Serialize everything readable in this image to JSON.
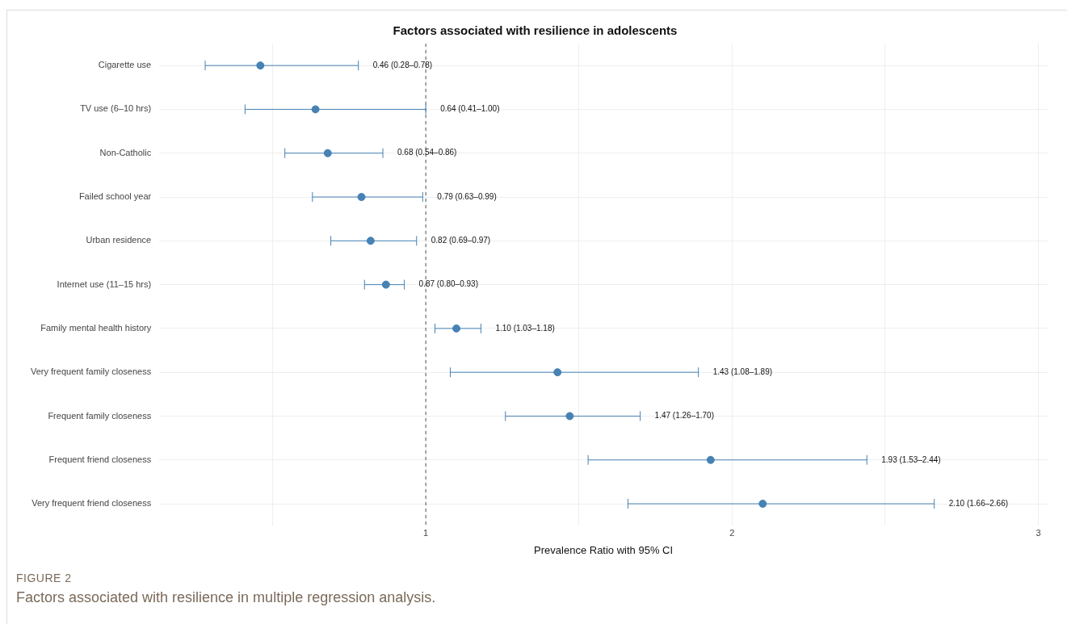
{
  "chart_data": {
    "type": "scatter",
    "orientation": "horizontal",
    "title": "Factors associated with resilience in adolescents",
    "xlabel": "Prevalence Ratio with 95% CI",
    "categories": [
      "Cigarette use",
      "TV use (6–10 hrs)",
      "Non-Catholic",
      "Failed school year",
      "Urban residence",
      "Internet use (11–15 hrs)",
      "Family mental health history",
      "Very frequent family closeness",
      "Frequent family closeness",
      "Frequent friend closeness",
      "Very frequent friend closeness"
    ],
    "values": [
      0.46,
      0.64,
      0.68,
      0.79,
      0.82,
      0.87,
      1.1,
      1.43,
      1.47,
      1.93,
      2.1
    ],
    "errors": [
      [
        0.28,
        0.78
      ],
      [
        0.41,
        1.0
      ],
      [
        0.54,
        0.86
      ],
      [
        0.63,
        0.99
      ],
      [
        0.69,
        0.97
      ],
      [
        0.8,
        0.93
      ],
      [
        1.03,
        1.18
      ],
      [
        1.08,
        1.89
      ],
      [
        1.26,
        1.7
      ],
      [
        1.53,
        2.44
      ],
      [
        1.66,
        2.66
      ]
    ],
    "color": "#4682b4",
    "marker": "circle",
    "grid": true,
    "xlim": [
      0.13,
      3.03
    ],
    "xticks": [
      {
        "value": 0.5,
        "label": null
      },
      1,
      {
        "value": 1.5,
        "label": null
      },
      2,
      {
        "value": 2.5,
        "label": null
      },
      3
    ],
    "ref_lines": [
      {
        "axis": "x",
        "value": 1,
        "line_style": "dashed",
        "color": "#555555"
      }
    ],
    "annotations": [
      {
        "text": "0.46 (0.28–0.78)",
        "x": 0.78,
        "y": "Cigarette use"
      },
      {
        "text": "0.64 (0.41–1.00)",
        "x": 1.0,
        "y": "TV use (6–10 hrs)"
      },
      {
        "text": "0.68 (0.54–0.86)",
        "x": 0.86,
        "y": "Non-Catholic"
      },
      {
        "text": "0.79 (0.63–0.99)",
        "x": 0.99,
        "y": "Failed school year"
      },
      {
        "text": "0.82 (0.69–0.97)",
        "x": 0.97,
        "y": "Urban residence"
      },
      {
        "text": "0.87 (0.80–0.93)",
        "x": 0.93,
        "y": "Internet use (11–15 hrs)"
      },
      {
        "text": "1.10 (1.03–1.18)",
        "x": 1.18,
        "y": "Family mental health history"
      },
      {
        "text": "1.43 (1.08–1.89)",
        "x": 1.89,
        "y": "Very frequent family closeness"
      },
      {
        "text": "1.47 (1.26–1.70)",
        "x": 1.7,
        "y": "Frequent family closeness"
      },
      {
        "text": "1.93 (1.53–2.44)",
        "x": 2.44,
        "y": "Frequent friend closeness"
      },
      {
        "text": "2.10 (1.66–2.66)",
        "x": 2.66,
        "y": "Very frequent friend closeness"
      },
      "FIGURE 2",
      "Factors associated with resilience in multiple regression analysis."
    ]
  }
}
